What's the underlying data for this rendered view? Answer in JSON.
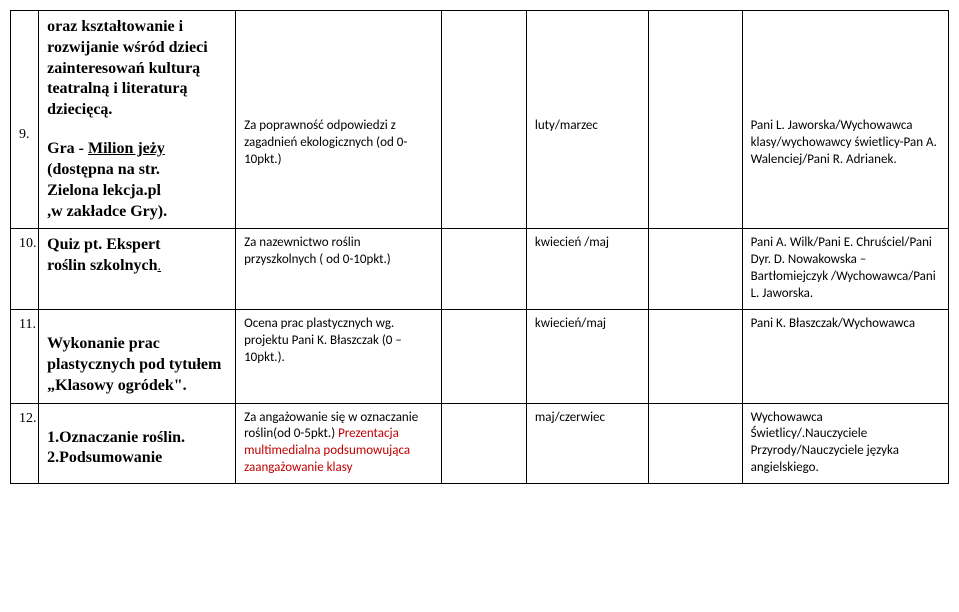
{
  "rows": [
    {
      "num": "9.",
      "title_top": "oraz  kształtowanie i rozwijanie wśród dzieci zainteresowań kulturą teatralną i literaturą dziecięcą.",
      "title_main_prefix": "Gra  - ",
      "title_main_link": "Milion jeży",
      "title_main_rest1": "(dostępna na str.",
      "title_main_rest2": "Zielona lekcja.pl",
      "title_main_rest3": ",w zakładce Gry).",
      "criteria": "Za poprawność odpowiedzi z zagadnień ekologicznych (od 0-10pkt.)",
      "date": "luty/marzec",
      "resp": " Pani L. Jaworska/Wychowawca klasy/wychowawcy świetlicy-Pan A. Walenciej/Pani R. Adrianek."
    },
    {
      "num": "10.",
      "title_main1": "Quiz  pt. Ekspert",
      "title_main2": "roślin szkolnych",
      "title_dot": ".",
      "criteria": "Za nazewnictwo roślin przyszkolnych ( od 0-10pkt.)",
      "date": "kwiecień /maj",
      "resp": " Pani A. Wilk/Pani E. Chruściel/Pani Dyr. D. Nowakowska – Bartłomiejczyk /Wychowawca/Pani L. Jaworska."
    },
    {
      "num": "11.",
      "title_main1": "Wykonanie prac plastycznych pod tytułem „Klasowy ogródek\".",
      "criteria": "Ocena prac plastycznych wg. projektu Pani K. Błaszczak (0 – 10pkt.).",
      "date": "kwiecień/maj",
      "resp": "Pani K. Błaszczak/Wychowawca"
    },
    {
      "num": "12.",
      "title_main1": "1.Oznaczanie roślin.",
      "title_main2": "2.Podsumowanie",
      "criteria_part1": "Za angażowanie się w oznaczanie roślin(od 0-5pkt.)",
      "criteria_red": "Prezentacja multimedialna podsumowująca zaangażowanie klasy",
      "date": "maj/czerwiec",
      "resp": " Wychowawca Świetlicy/.Nauczyciele Przyrody/Nauczyciele języka angielskiego."
    }
  ]
}
